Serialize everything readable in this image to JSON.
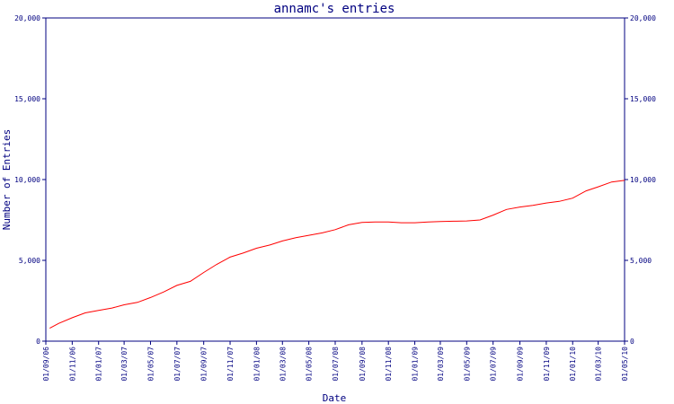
{
  "chart_data": {
    "type": "line",
    "title": "annamc's entries",
    "xlabel": "Date",
    "ylabel": "Number of Entries",
    "ylim": [
      0,
      20000
    ],
    "y_ticks": [
      "0",
      "5,000",
      "10,000",
      "15,000",
      "20,000"
    ],
    "x_ticks": [
      "01/09/06",
      "01/11/06",
      "01/01/07",
      "01/03/07",
      "01/05/07",
      "01/07/07",
      "01/09/07",
      "01/11/07",
      "01/01/08",
      "01/03/08",
      "01/05/08",
      "01/07/08",
      "01/09/08",
      "01/11/08",
      "01/01/09",
      "01/03/09",
      "01/05/09",
      "01/07/09",
      "01/09/09",
      "01/11/09",
      "01/01/10",
      "01/03/10",
      "01/05/10"
    ],
    "grid": false,
    "line_color": "#ff0000",
    "axis_color": "#000080",
    "series": [
      {
        "x": [
          "2006-09-10",
          "2006-10-01",
          "2006-11-01",
          "2006-12-01",
          "2007-01-01",
          "2007-02-01",
          "2007-03-01",
          "2007-04-01",
          "2007-05-01",
          "2007-06-01",
          "2007-07-01",
          "2007-08-01",
          "2007-09-01",
          "2007-10-01",
          "2007-11-01",
          "2007-12-01",
          "2008-01-01",
          "2008-02-01",
          "2008-03-01",
          "2008-04-01",
          "2008-05-01",
          "2008-06-01",
          "2008-07-01",
          "2008-08-01",
          "2008-09-01",
          "2008-10-01",
          "2008-11-01",
          "2008-12-01",
          "2009-01-01",
          "2009-02-01",
          "2009-03-01",
          "2009-04-01",
          "2009-05-01",
          "2009-06-01",
          "2009-07-01",
          "2009-08-01",
          "2009-09-01",
          "2009-10-01",
          "2009-11-01",
          "2009-12-01",
          "2010-01-01",
          "2010-02-01",
          "2010-03-01",
          "2010-04-01",
          "2010-05-01"
        ],
        "values": [
          800,
          1100,
          1450,
          1750,
          1900,
          2050,
          2250,
          2400,
          2700,
          3050,
          3450,
          3700,
          4250,
          4750,
          5200,
          5450,
          5750,
          5950,
          6200,
          6400,
          6550,
          6700,
          6900,
          7200,
          7350,
          7380,
          7380,
          7330,
          7330,
          7380,
          7400,
          7420,
          7440,
          7500,
          7800,
          8150,
          8300,
          8400,
          8550,
          8650,
          8850,
          9300,
          9550,
          9850,
          9950
        ]
      }
    ]
  }
}
